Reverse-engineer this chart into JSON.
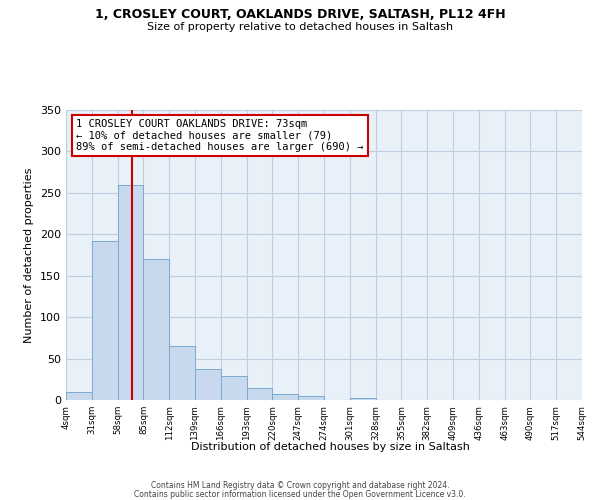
{
  "title": "1, CROSLEY COURT, OAKLANDS DRIVE, SALTASH, PL12 4FH",
  "subtitle": "Size of property relative to detached houses in Saltash",
  "xlabel": "Distribution of detached houses by size in Saltash",
  "ylabel": "Number of detached properties",
  "bar_color": "#c8d9ee",
  "bar_edge_color": "#7aaad0",
  "plot_bg_color": "#e8f0f8",
  "bins": [
    4,
    31,
    58,
    85,
    112,
    139,
    166,
    193,
    220,
    247,
    274,
    301,
    328,
    355,
    382,
    409,
    436,
    463,
    490,
    517,
    544
  ],
  "counts": [
    10,
    192,
    260,
    170,
    65,
    37,
    29,
    14,
    7,
    5,
    0,
    2,
    0,
    0,
    0,
    0,
    0,
    0,
    0,
    0
  ],
  "tick_labels": [
    "4sqm",
    "31sqm",
    "58sqm",
    "85sqm",
    "112sqm",
    "139sqm",
    "166sqm",
    "193sqm",
    "220sqm",
    "247sqm",
    "274sqm",
    "301sqm",
    "328sqm",
    "355sqm",
    "382sqm",
    "409sqm",
    "436sqm",
    "463sqm",
    "490sqm",
    "517sqm",
    "544sqm"
  ],
  "ylim": [
    0,
    350
  ],
  "yticks": [
    0,
    50,
    100,
    150,
    200,
    250,
    300,
    350
  ],
  "vline_x": 73,
  "vline_color": "#cc0000",
  "annotation_line1": "1 CROSLEY COURT OAKLANDS DRIVE: 73sqm",
  "annotation_line2": "← 10% of detached houses are smaller (79)",
  "annotation_line3": "89% of semi-detached houses are larger (690) →",
  "annotation_box_color": "#ffffff",
  "annotation_border_color": "#cc0000",
  "footnote1": "Contains HM Land Registry data © Crown copyright and database right 2024.",
  "footnote2": "Contains public sector information licensed under the Open Government Licence v3.0.",
  "background_color": "#ffffff",
  "grid_color": "#c0cfe0"
}
